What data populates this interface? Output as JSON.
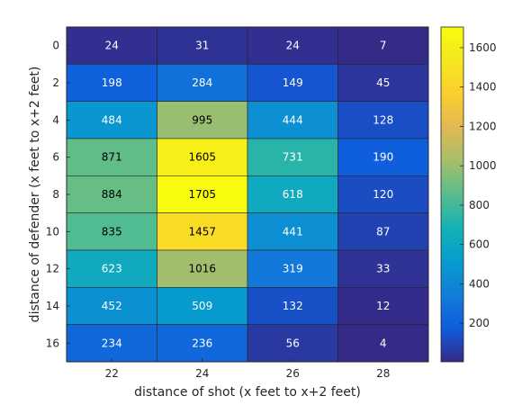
{
  "chart_data": {
    "type": "heatmap",
    "title": "",
    "xlabel": "distance of shot (x feet to x+2 feet)",
    "ylabel": "distance of defender (x feet to x+2 feet)",
    "x_categories": [
      "22",
      "24",
      "26",
      "28"
    ],
    "y_categories": [
      "0",
      "2",
      "4",
      "6",
      "8",
      "10",
      "12",
      "14",
      "16"
    ],
    "values": [
      [
        24,
        31,
        24,
        7
      ],
      [
        198,
        284,
        149,
        45
      ],
      [
        484,
        995,
        444,
        128
      ],
      [
        871,
        1605,
        731,
        190
      ],
      [
        884,
        1705,
        618,
        120
      ],
      [
        835,
        1457,
        441,
        87
      ],
      [
        623,
        1016,
        319,
        33
      ],
      [
        452,
        509,
        132,
        12
      ],
      [
        234,
        236,
        56,
        4
      ]
    ],
    "colormap": "parula",
    "colorbar": {
      "min": 4,
      "max": 1705,
      "ticks": [
        200,
        400,
        600,
        800,
        1000,
        1200,
        1400,
        1600
      ]
    },
    "grid": false,
    "legend": "colorbar-right"
  }
}
